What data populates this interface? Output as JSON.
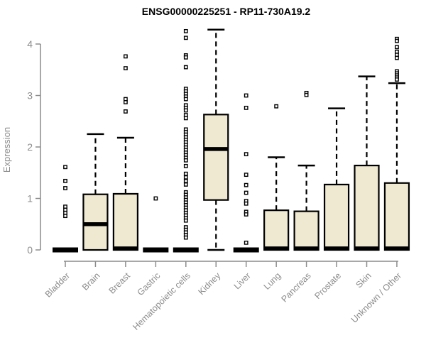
{
  "chart_data": {
    "type": "boxplot",
    "title": "ENSG00000225251 - RP11-730A19.2",
    "ylabel": "Expression",
    "xlabel": "",
    "ylim": [
      0,
      4
    ],
    "yticks": [
      0,
      1,
      2,
      3,
      4
    ],
    "grid": false,
    "legend": "none",
    "categories": [
      "Bladder",
      "Brain",
      "Breast",
      "Gastric",
      "Hematopoietic cells",
      "Kidney",
      "Liver",
      "Lung",
      "Pancreas",
      "Prostate",
      "Skin",
      "Unknown / Other"
    ],
    "series": [
      {
        "name": "Bladder",
        "q1": 0,
        "median": 0,
        "q3": 0,
        "whisker_low": 0,
        "whisker_high": 0,
        "outliers": [
          1.61,
          1.34,
          1.2,
          0.84,
          0.78,
          0.72,
          0.66
        ]
      },
      {
        "name": "Brain",
        "q1": 0,
        "median": 0.5,
        "q3": 1.08,
        "whisker_low": 0,
        "whisker_high": 2.25,
        "outliers": []
      },
      {
        "name": "Breast",
        "q1": 0,
        "median": 0.03,
        "q3": 1.09,
        "whisker_low": 0,
        "whisker_high": 2.18,
        "outliers": [
          3.76,
          3.53,
          2.93,
          2.87,
          2.69
        ]
      },
      {
        "name": "Gastric",
        "q1": 0,
        "median": 0,
        "q3": 0,
        "whisker_low": 0,
        "whisker_high": 0,
        "outliers": [
          1.0
        ]
      },
      {
        "name": "Hematopoietic cells",
        "q1": 0,
        "median": 0,
        "q3": 0,
        "whisker_low": 0,
        "whisker_high": 0,
        "outliers": [
          4.25,
          4.12,
          3.78,
          3.74,
          3.55,
          3.13,
          3.08,
          3.03,
          2.98,
          2.93,
          2.81,
          2.76,
          2.71,
          2.62,
          2.56,
          2.34,
          2.29,
          2.24,
          2.19,
          2.14,
          2.09,
          2.04,
          1.99,
          1.94,
          1.89,
          1.84,
          1.79,
          1.74,
          1.63,
          1.48,
          1.41,
          1.34,
          1.27,
          1.12,
          1.07,
          1.02,
          0.97,
          0.92,
          0.87,
          0.82,
          0.77,
          0.72,
          0.67,
          0.62,
          0.57,
          0.44,
          0.39,
          0.34,
          0.29,
          0.24
        ]
      },
      {
        "name": "Kidney",
        "q1": 0.97,
        "median": 1.96,
        "q3": 2.63,
        "whisker_low": 0,
        "whisker_high": 4.28,
        "outliers": []
      },
      {
        "name": "Liver",
        "q1": 0,
        "median": 0,
        "q3": 0,
        "whisker_low": 0,
        "whisker_high": 0,
        "outliers": [
          3.0,
          2.76,
          1.86,
          1.46,
          1.26,
          1.11,
          0.95,
          0.9,
          0.74,
          0.69,
          0.14
        ]
      },
      {
        "name": "Lung",
        "q1": 0,
        "median": 0.03,
        "q3": 0.77,
        "whisker_low": 0,
        "whisker_high": 1.8,
        "outliers": [
          2.79
        ]
      },
      {
        "name": "Pancreas",
        "q1": 0,
        "median": 0.03,
        "q3": 0.75,
        "whisker_low": 0,
        "whisker_high": 1.64,
        "outliers": [
          3.05,
          3.01
        ]
      },
      {
        "name": "Prostate",
        "q1": 0,
        "median": 0.03,
        "q3": 1.27,
        "whisker_low": 0,
        "whisker_high": 2.75,
        "outliers": []
      },
      {
        "name": "Skin",
        "q1": 0,
        "median": 0.03,
        "q3": 1.64,
        "whisker_low": 0,
        "whisker_high": 3.37,
        "outliers": []
      },
      {
        "name": "Unknown / Other",
        "q1": 0,
        "median": 0.03,
        "q3": 1.3,
        "whisker_low": 0,
        "whisker_high": 3.24,
        "outliers": [
          4.1,
          4.06,
          3.94,
          3.85,
          3.79,
          3.73,
          3.47,
          3.43,
          3.39,
          3.35,
          3.31
        ]
      }
    ]
  },
  "colors": {
    "box_fill": "#EFE9D2",
    "box_border": "#000000",
    "median": "#000000",
    "whisker": "#000000",
    "outlier_stroke": "#000000",
    "outlier_fill": "#FFFFFF",
    "axis": "#8C8C8C",
    "tick_label": "#8C8C8C",
    "title": "#000000",
    "background": "#FFFFFF"
  }
}
